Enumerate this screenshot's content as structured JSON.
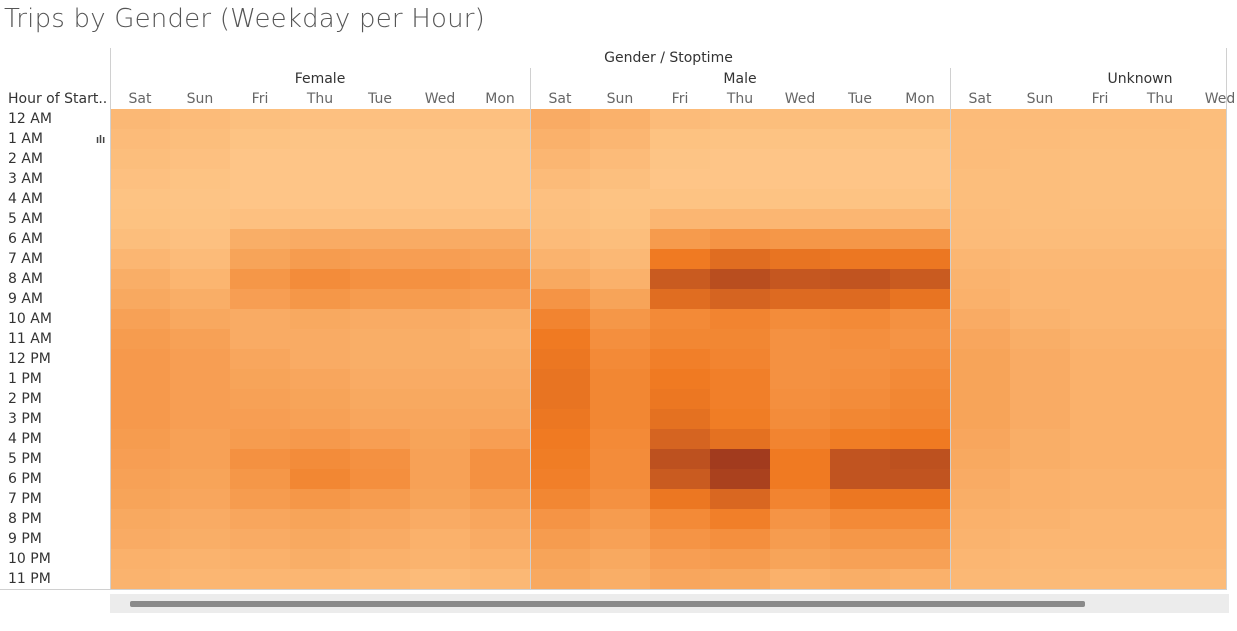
{
  "title": "Trips by Gender (Weekday per Hour)",
  "colors": {
    "low": "#FEC88A",
    "mid": "#F07A22",
    "high": "#A23B1E"
  },
  "chart_data": {
    "type": "heatmap",
    "title": "Trips by Gender (Weekday per Hour)",
    "column_header": "Gender / Stoptime",
    "row_header": "Hour of Start..",
    "groups": [
      {
        "name": "Female",
        "days": [
          "Sat",
          "Sun",
          "Fri",
          "Thu",
          "Tue",
          "Wed",
          "Mon"
        ]
      },
      {
        "name": "Male",
        "days": [
          "Sat",
          "Sun",
          "Fri",
          "Thu",
          "Wed",
          "Tue",
          "Mon"
        ]
      },
      {
        "name": "Unknown",
        "days": [
          "Sat",
          "Sun",
          "Fri",
          "Thu",
          "Wed"
        ]
      }
    ],
    "hours": [
      "12 AM",
      "1 AM",
      "2 AM",
      "3 AM",
      "4 AM",
      "5 AM",
      "6 AM",
      "7 AM",
      "8 AM",
      "9 AM",
      "10 AM",
      "11 AM",
      "12 PM",
      "1 PM",
      "2 PM",
      "3 PM",
      "4 PM",
      "5 PM",
      "6 PM",
      "7 PM",
      "8 PM",
      "9 PM",
      "10 PM",
      "11 PM"
    ],
    "value_scale": "relative intensity 0-100",
    "values": [
      [
        12,
        10,
        7,
        6,
        6,
        6,
        6,
        22,
        18,
        10,
        8,
        8,
        8,
        8,
        10,
        10,
        9,
        9,
        8
      ],
      [
        10,
        8,
        4,
        3,
        3,
        3,
        3,
        18,
        14,
        5,
        4,
        4,
        4,
        4,
        9,
        9,
        8,
        8,
        8
      ],
      [
        8,
        6,
        2,
        2,
        2,
        2,
        2,
        14,
        10,
        3,
        2,
        2,
        2,
        2,
        9,
        8,
        7,
        7,
        7
      ],
      [
        6,
        4,
        2,
        2,
        2,
        2,
        2,
        10,
        7,
        2,
        2,
        2,
        2,
        2,
        8,
        8,
        7,
        7,
        7
      ],
      [
        4,
        3,
        2,
        2,
        2,
        2,
        2,
        6,
        4,
        4,
        4,
        4,
        4,
        4,
        8,
        8,
        7,
        7,
        7
      ],
      [
        5,
        4,
        6,
        6,
        6,
        6,
        6,
        7,
        5,
        14,
        14,
        14,
        14,
        14,
        9,
        8,
        8,
        8,
        8
      ],
      [
        8,
        6,
        20,
        22,
        22,
        22,
        22,
        10,
        8,
        35,
        40,
        38,
        38,
        38,
        10,
        9,
        9,
        9,
        9
      ],
      [
        14,
        10,
        28,
        34,
        32,
        32,
        30,
        16,
        12,
        60,
        68,
        64,
        62,
        62,
        14,
        12,
        12,
        12,
        12
      ],
      [
        20,
        15,
        38,
        46,
        42,
        42,
        40,
        24,
        18,
        80,
        88,
        82,
        84,
        80,
        16,
        14,
        14,
        14,
        14
      ],
      [
        24,
        20,
        32,
        38,
        34,
        34,
        32,
        40,
        28,
        68,
        74,
        70,
        70,
        64,
        18,
        14,
        14,
        14,
        14
      ],
      [
        30,
        25,
        22,
        24,
        22,
        22,
        20,
        52,
        38,
        48,
        52,
        46,
        48,
        42,
        22,
        16,
        14,
        14,
        14
      ],
      [
        34,
        30,
        22,
        22,
        20,
        20,
        18,
        60,
        44,
        50,
        50,
        42,
        44,
        40,
        26,
        20,
        16,
        16,
        16
      ],
      [
        36,
        32,
        26,
        22,
        20,
        20,
        20,
        62,
        48,
        56,
        52,
        42,
        42,
        44,
        28,
        22,
        18,
        18,
        18
      ],
      [
        36,
        32,
        28,
        26,
        22,
        22,
        22,
        64,
        50,
        60,
        56,
        42,
        44,
        48,
        28,
        22,
        18,
        18,
        18
      ],
      [
        36,
        32,
        30,
        28,
        24,
        24,
        24,
        64,
        50,
        62,
        56,
        44,
        46,
        50,
        28,
        22,
        18,
        18,
        18
      ],
      [
        36,
        32,
        32,
        30,
        26,
        26,
        26,
        62,
        50,
        66,
        58,
        46,
        50,
        52,
        28,
        22,
        18,
        18,
        18
      ],
      [
        34,
        30,
        34,
        36,
        32,
        28,
        32,
        60,
        48,
        74,
        66,
        52,
        58,
        60,
        26,
        20,
        18,
        18,
        18
      ],
      [
        32,
        30,
        42,
        46,
        42,
        30,
        42,
        58,
        46,
        86,
        100,
        60,
        84,
        86,
        24,
        20,
        18,
        18,
        18
      ],
      [
        30,
        28,
        38,
        50,
        44,
        30,
        42,
        56,
        46,
        80,
        96,
        60,
        84,
        84,
        22,
        18,
        16,
        16,
        16
      ],
      [
        28,
        26,
        34,
        38,
        34,
        28,
        34,
        50,
        42,
        62,
        72,
        52,
        62,
        62,
        20,
        18,
        16,
        16,
        16
      ],
      [
        24,
        22,
        26,
        28,
        26,
        22,
        26,
        40,
        34,
        48,
        56,
        40,
        48,
        48,
        18,
        16,
        14,
        14,
        14
      ],
      [
        22,
        20,
        22,
        24,
        22,
        18,
        22,
        34,
        30,
        40,
        44,
        34,
        38,
        38,
        16,
        14,
        14,
        14,
        14
      ],
      [
        18,
        16,
        18,
        20,
        18,
        16,
        18,
        28,
        24,
        32,
        34,
        28,
        30,
        30,
        14,
        12,
        12,
        12,
        12
      ],
      [
        16,
        14,
        14,
        14,
        12,
        10,
        12,
        24,
        20,
        26,
        24,
        18,
        20,
        18,
        12,
        11,
        10,
        10,
        10
      ]
    ]
  }
}
